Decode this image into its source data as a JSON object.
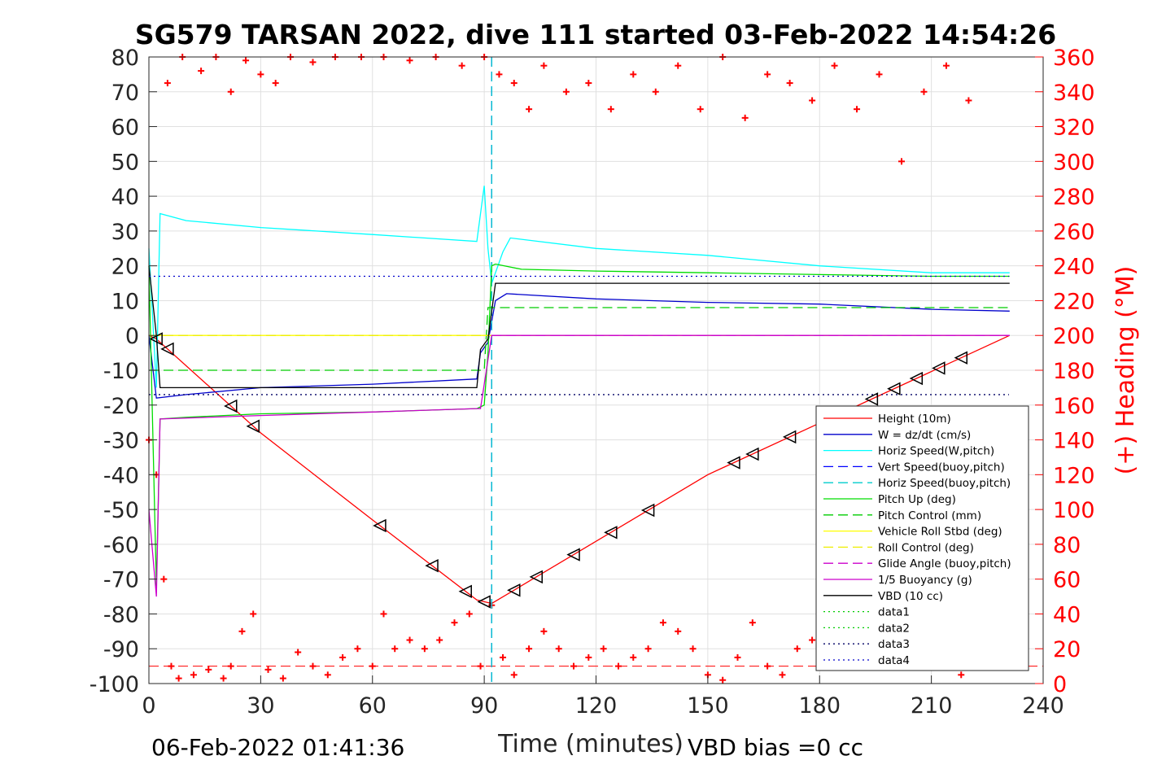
{
  "chart_data": {
    "type": "line",
    "title": "SG579 TARSAN 2022, dive 111 started 03-Feb-2022 14:54:26",
    "xlabel": "Time (minutes)",
    "ylabel_right": "(+) Heading (°M)",
    "xlim": [
      0,
      240
    ],
    "ylim_left": [
      -100,
      80
    ],
    "ylim_right": [
      0,
      360
    ],
    "xticks": [
      "0",
      "30",
      "60",
      "90",
      "120",
      "150",
      "180",
      "210",
      "240"
    ],
    "yticks_left": [
      "80",
      "70",
      "60",
      "50",
      "40",
      "30",
      "20",
      "10",
      "0",
      "-10",
      "-20",
      "-30",
      "-40",
      "-50",
      "-60",
      "-70",
      "-80",
      "-90",
      "-100"
    ],
    "yticks_right": [
      "360",
      "340",
      "320",
      "300",
      "280",
      "260",
      "240",
      "220",
      "200",
      "180",
      "160",
      "140",
      "120",
      "100",
      "80",
      "60",
      "40",
      "20",
      "0"
    ],
    "grid": true,
    "legend_position": "bottom-right",
    "footer_left": "06-Feb-2022 01:41:36",
    "footer_right": "VBD bias =0 cc",
    "series": [
      {
        "name": "Height (10m)",
        "color": "#ff0000",
        "style": "solid",
        "x": [
          0,
          2,
          30,
          60,
          88,
          92,
          150,
          231
        ],
        "y": [
          0,
          -1,
          -28,
          -53,
          -76,
          -77,
          -40,
          0
        ]
      },
      {
        "name": "W = dz/dt (cm/s)",
        "color": "#0000cc",
        "style": "solid",
        "x": [
          0,
          2,
          10,
          30,
          60,
          88,
          89,
          91,
          93,
          96,
          120,
          150,
          180,
          210,
          231
        ],
        "y": [
          0,
          -18,
          -17,
          -15,
          -14,
          -12.5,
          -5,
          -2,
          10,
          12,
          10.5,
          9.5,
          9,
          7.5,
          7
        ]
      },
      {
        "name": "Horiz Speed(W,pitch)",
        "color": "#00ffff",
        "style": "solid",
        "x": [
          0,
          2,
          3,
          10,
          30,
          60,
          88,
          90,
          91,
          92,
          95,
          97,
          120,
          150,
          180,
          210,
          231
        ],
        "y": [
          25,
          -15,
          35,
          33,
          31,
          29,
          27,
          43,
          25,
          15,
          24,
          28,
          25,
          23,
          20,
          18,
          18
        ]
      },
      {
        "name": "Vert Speed(buoy,pitch)",
        "color": "#0000ff",
        "style": "dash",
        "vline_x": 92
      },
      {
        "name": "Horiz Speed(buoy,pitch)",
        "color": "#00cccc",
        "style": "dash",
        "vline_x": 92
      },
      {
        "name": "Pitch Up (deg)",
        "color": "#00dd00",
        "style": "solid",
        "x": [
          0,
          2,
          3,
          10,
          30,
          60,
          88,
          90,
          91,
          92,
          93,
          100,
          120,
          150,
          180,
          210,
          231
        ],
        "y": [
          20,
          -72,
          -24,
          -23.5,
          -22.5,
          -22,
          -21,
          -20,
          -5,
          20,
          20.5,
          19,
          18.5,
          18,
          17.5,
          17,
          17
        ]
      },
      {
        "name": "Pitch Control (mm)",
        "color": "#00cc00",
        "style": "dash",
        "x": [
          0,
          90,
          91,
          231
        ],
        "y": [
          -10,
          -10,
          8,
          8
        ]
      },
      {
        "name": "Vehicle Roll Stbd (deg)",
        "color": "#ffff00",
        "style": "solid",
        "x": [
          0,
          90,
          92,
          231
        ],
        "y": [
          0,
          0,
          0,
          0
        ]
      },
      {
        "name": "Roll Control (deg)",
        "color": "#eeee00",
        "style": "dash",
        "x": [
          0,
          231
        ],
        "y": [
          0,
          0
        ]
      },
      {
        "name": "Glide Angle (buoy,pitch)",
        "color": "#cc00cc",
        "style": "dash",
        "x": [
          92,
          231
        ],
        "y": [
          0,
          0
        ]
      },
      {
        "name": "1/5 Buoyancy (g)",
        "color": "#cc00cc",
        "style": "solid",
        "x": [
          0,
          2,
          3,
          30,
          60,
          88,
          89,
          92,
          231
        ],
        "y": [
          -50,
          -75,
          -24,
          -23,
          -22,
          -21,
          -21,
          0,
          0
        ]
      },
      {
        "name": "VBD (10 cc)",
        "color": "#000000",
        "style": "solid",
        "x": [
          0,
          2,
          3,
          88,
          89,
          91,
          93,
          231
        ],
        "y": [
          20,
          0,
          -15,
          -15,
          -4,
          -1,
          15,
          15
        ]
      },
      {
        "name": "data1",
        "color": "#00cc00",
        "style": "dot"
      },
      {
        "name": "data2",
        "color": "#00cc00",
        "style": "dot"
      },
      {
        "name": "data3",
        "color": "#000066",
        "style": "dot",
        "hline_y": -17
      },
      {
        "name": "data4",
        "color": "#0000cc",
        "style": "dot",
        "hline_y": 17
      }
    ],
    "heading": {
      "axis": "right",
      "color": "#ff0000",
      "marker": "+",
      "reference_line": 10,
      "x": [
        0,
        2,
        4,
        6,
        8,
        12,
        16,
        20,
        22,
        25,
        28,
        32,
        36,
        40,
        44,
        48,
        52,
        56,
        60,
        63,
        66,
        70,
        74,
        78,
        82,
        86,
        89,
        92,
        95,
        98,
        102,
        106,
        110,
        114,
        118,
        122,
        126,
        130,
        134,
        138,
        142,
        146,
        150,
        154,
        158,
        162,
        166,
        170,
        174,
        178,
        182,
        186,
        190,
        194,
        198,
        202,
        206,
        210,
        214,
        218
      ],
      "y": [
        140,
        120,
        60,
        10,
        3,
        5,
        8,
        3,
        10,
        30,
        40,
        8,
        3,
        18,
        10,
        5,
        15,
        20,
        10,
        40,
        20,
        25,
        20,
        25,
        35,
        40,
        10,
        45,
        15,
        5,
        20,
        30,
        20,
        10,
        15,
        20,
        10,
        15,
        20,
        35,
        30,
        20,
        5,
        2,
        15,
        35,
        10,
        5,
        20,
        25,
        10,
        15,
        30,
        20,
        10,
        25,
        35,
        20,
        10,
        5
      ]
    },
    "heading_top_x": [
      5,
      9,
      14,
      18,
      22,
      26,
      30,
      34,
      38,
      44,
      50,
      57,
      63,
      70,
      77,
      84,
      90,
      94,
      98,
      102,
      106,
      112,
      118,
      124,
      130,
      136,
      142,
      148,
      154,
      160,
      166,
      172,
      178,
      184,
      190,
      196,
      202,
      208,
      214,
      220
    ],
    "heading_top_y": [
      345,
      360,
      352,
      360,
      340,
      358,
      350,
      345,
      360,
      357,
      360,
      360,
      360,
      358,
      360,
      355,
      360,
      350,
      345,
      330,
      355,
      340,
      345,
      330,
      350,
      340,
      355,
      330,
      360,
      325,
      350,
      345,
      335,
      355,
      330,
      350,
      300,
      340,
      355,
      335
    ]
  }
}
